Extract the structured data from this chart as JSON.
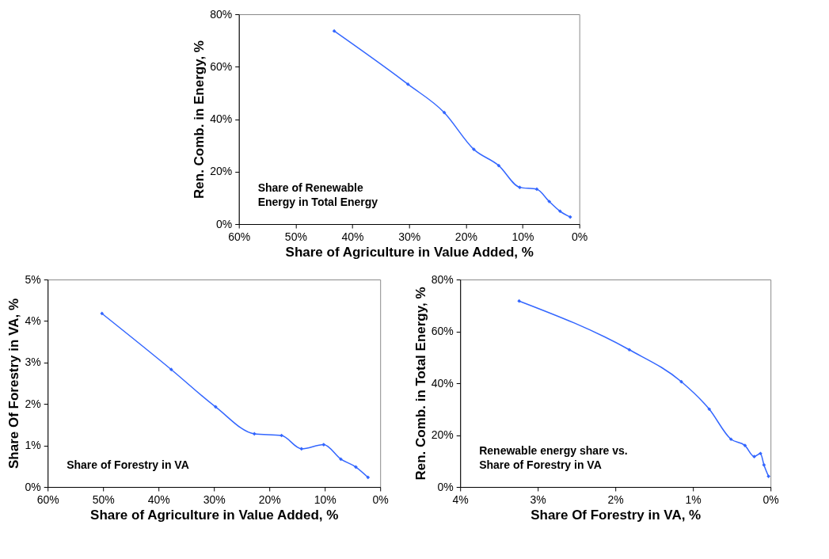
{
  "chart_data": [
    {
      "type": "line",
      "marker": "diamond",
      "xlabel": "Share of Agriculture in Value Added, %",
      "ylabel": "Ren. Comb. in Energy, %",
      "annotations": [
        "Share of Renewable\nEnergy in Total Energy"
      ],
      "xlim": [
        60,
        0
      ],
      "xticks": [
        {
          "value": 60,
          "label": "60%"
        },
        {
          "value": 50,
          "label": "50%"
        },
        {
          "value": 40,
          "label": "40%"
        },
        {
          "value": 30,
          "label": "30%"
        },
        {
          "value": 20,
          "label": "20%"
        },
        {
          "value": 10,
          "label": "10%"
        },
        {
          "value": 0,
          "label": "0%"
        }
      ],
      "ylim": [
        0,
        80
      ],
      "yticks": [
        {
          "value": 0,
          "label": "0%"
        },
        {
          "value": 20,
          "label": "20%"
        },
        {
          "value": 40,
          "label": "40%"
        },
        {
          "value": 60,
          "label": "60%"
        },
        {
          "value": 80,
          "label": "80%"
        }
      ],
      "x": [
        43.2,
        30.2,
        23.8,
        18.6,
        14.2,
        10.5,
        7.5,
        5.3,
        3.4,
        1.6
      ],
      "series": [
        {
          "color": "#3366ff",
          "values": [
            73.6,
            53.3,
            42.5,
            28.5,
            22.3,
            14.0,
            13.3,
            8.6,
            4.9,
            2.7
          ]
        }
      ]
    },
    {
      "type": "line",
      "marker": "diamond",
      "xlabel": "Share of Agriculture in Value Added, %",
      "ylabel": "Share Of Forestry in VA, %",
      "annotations": [
        "Share of Forestry in VA"
      ],
      "xlim": [
        60,
        0
      ],
      "xticks": [
        {
          "value": 60,
          "label": "60%"
        },
        {
          "value": 50,
          "label": "50%"
        },
        {
          "value": 40,
          "label": "40%"
        },
        {
          "value": 30,
          "label": "30%"
        },
        {
          "value": 20,
          "label": "20%"
        },
        {
          "value": 10,
          "label": "10%"
        },
        {
          "value": 0,
          "label": "0%"
        }
      ],
      "ylim": [
        0,
        5
      ],
      "yticks": [
        {
          "value": 0,
          "label": "0%"
        },
        {
          "value": 1,
          "label": "1%"
        },
        {
          "value": 2,
          "label": "2%"
        },
        {
          "value": 3,
          "label": "3%"
        },
        {
          "value": 4,
          "label": "4%"
        },
        {
          "value": 5,
          "label": "5%"
        }
      ],
      "x": [
        50.2,
        37.7,
        29.7,
        22.7,
        17.8,
        14.2,
        10.2,
        7.1,
        4.4,
        2.2
      ],
      "series": [
        {
          "color": "#3366ff",
          "values": [
            4.18,
            2.83,
            1.93,
            1.28,
            1.24,
            0.92,
            1.02,
            0.67,
            0.48,
            0.23
          ]
        }
      ]
    },
    {
      "type": "line",
      "marker": "diamond",
      "xlabel": "Share Of Forestry in VA, %",
      "ylabel": "Ren. Comb. in Total Energy, %",
      "annotations": [
        "Renewable energy share vs.\nShare of Forestry in VA"
      ],
      "xlim": [
        4,
        0
      ],
      "xticks": [
        {
          "value": 4,
          "label": "4%"
        },
        {
          "value": 3,
          "label": "3%"
        },
        {
          "value": 2,
          "label": "2%"
        },
        {
          "value": 1,
          "label": "1%"
        },
        {
          "value": 0,
          "label": "0%"
        }
      ],
      "ylim": [
        0,
        80
      ],
      "yticks": [
        {
          "value": 0,
          "label": "0%"
        },
        {
          "value": 20,
          "label": "20%"
        },
        {
          "value": 40,
          "label": "40%"
        },
        {
          "value": 60,
          "label": "60%"
        },
        {
          "value": 80,
          "label": "80%"
        }
      ],
      "x": [
        3.24,
        1.82,
        1.15,
        0.79,
        0.51,
        0.33,
        0.21,
        0.13,
        0.085,
        0.026
      ],
      "series": [
        {
          "color": "#3366ff",
          "values": [
            71.7,
            52.9,
            40.6,
            30.0,
            18.4,
            16.0,
            11.7,
            12.9,
            8.5,
            4.1
          ]
        }
      ]
    }
  ]
}
